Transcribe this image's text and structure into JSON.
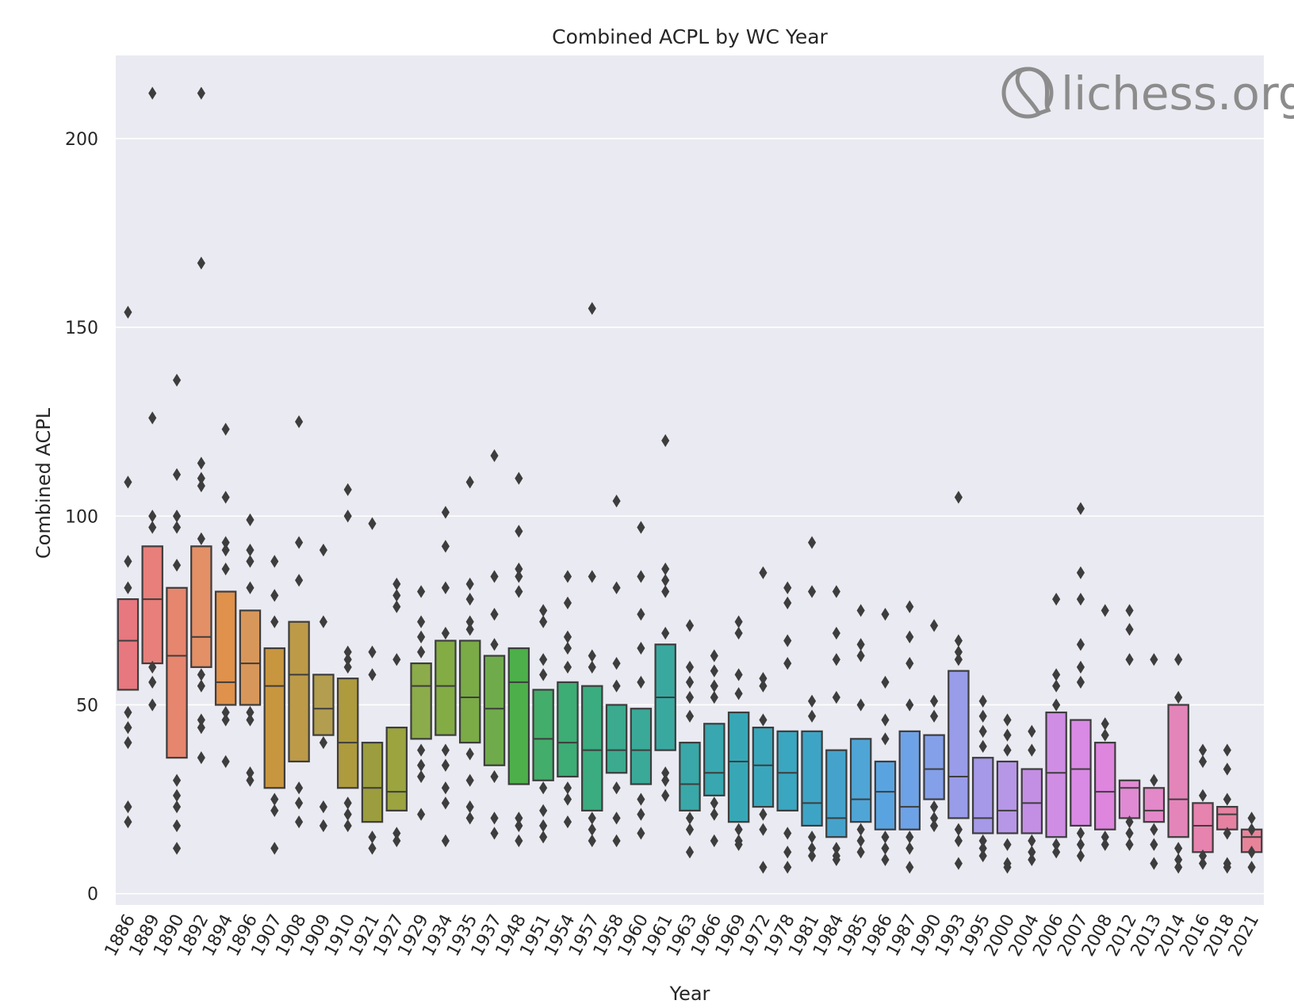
{
  "chart_data": {
    "type": "boxen",
    "title": "Combined ACPL by WC Year",
    "xlabel": "Year",
    "ylabel": "Combined ACPL",
    "ylim": [
      -3,
      222
    ],
    "yticks": [
      0,
      50,
      100,
      150,
      200
    ],
    "grid": true,
    "watermark": "lichess.org",
    "categories": [
      "1886",
      "1889",
      "1890",
      "1892",
      "1894",
      "1896",
      "1907",
      "1908",
      "1909",
      "1910",
      "1921",
      "1927",
      "1929",
      "1934",
      "1935",
      "1937",
      "1948",
      "1951",
      "1954",
      "1957",
      "1958",
      "1960",
      "1961",
      "1963",
      "1966",
      "1969",
      "1972",
      "1978",
      "1981",
      "1984",
      "1985",
      "1986",
      "1987",
      "1990",
      "1993",
      "1995",
      "2000",
      "2004",
      "2006",
      "2007",
      "2008",
      "2012",
      "2013",
      "2014",
      "2016",
      "2018",
      "2021"
    ],
    "colors": [
      "#e8787f",
      "#e87f7a",
      "#e6866e",
      "#e49066",
      "#e0914b",
      "#d8975a",
      "#c8963f",
      "#bc9a48",
      "#b39e4f",
      "#ae9b3e",
      "#9b9d3e",
      "#9ba43f",
      "#8cab4a",
      "#83ac45",
      "#7aab47",
      "#6fab4b",
      "#4daf4a",
      "#43ad6b",
      "#3dac75",
      "#3aac80",
      "#3baa8e",
      "#3aa998",
      "#39a9a0",
      "#3aa8a8",
      "#38a7af",
      "#37a7b6",
      "#39a6bc",
      "#3aa6c0",
      "#3ea4c6",
      "#45a3cb",
      "#4fa5d6",
      "#59a4e0",
      "#6ea2e6",
      "#84a0e8",
      "#999ce8",
      "#a699e8",
      "#b697e7",
      "#c38fe4",
      "#cf8ee4",
      "#d98ae4",
      "#de85dd",
      "#e08ad4",
      "#e388c8",
      "#e485ba",
      "#e683ae",
      "#e681a2",
      "#e8849a"
    ],
    "boxes": [
      {
        "median": 67,
        "q1": 54,
        "q3": 78,
        "outliers": [
          154,
          109,
          88,
          81,
          48,
          44,
          40,
          23,
          19
        ]
      },
      {
        "median": 78,
        "q1": 61,
        "q3": 92,
        "outliers": [
          212,
          126,
          100,
          97,
          60,
          56,
          50
        ]
      },
      {
        "median": 63,
        "q1": 36,
        "q3": 81,
        "outliers": [
          136,
          111,
          100,
          97,
          87,
          30,
          26,
          23,
          18,
          12
        ]
      },
      {
        "median": 68,
        "q1": 60,
        "q3": 92,
        "outliers": [
          212,
          167,
          114,
          110,
          108,
          94,
          58,
          55,
          46,
          44,
          36
        ]
      },
      {
        "median": 56,
        "q1": 50,
        "q3": 80,
        "outliers": [
          123,
          105,
          93,
          91,
          86,
          48,
          46,
          35
        ]
      },
      {
        "median": 61,
        "q1": 50,
        "q3": 75,
        "outliers": [
          99,
          91,
          88,
          81,
          48,
          46,
          32,
          30
        ]
      },
      {
        "median": 55,
        "q1": 28,
        "q3": 65,
        "outliers": [
          88,
          79,
          72,
          25,
          22,
          12
        ]
      },
      {
        "median": 58,
        "q1": 35,
        "q3": 72,
        "outliers": [
          125,
          93,
          83,
          28,
          24,
          19
        ]
      },
      {
        "median": 49,
        "q1": 42,
        "q3": 58,
        "outliers": [
          91,
          72,
          40,
          23,
          18
        ]
      },
      {
        "median": 40,
        "q1": 28,
        "q3": 57,
        "outliers": [
          107,
          100,
          64,
          62,
          60,
          24,
          21,
          18
        ]
      },
      {
        "median": 28,
        "q1": 19,
        "q3": 40,
        "outliers": [
          98,
          64,
          58,
          15,
          12
        ]
      },
      {
        "median": 27,
        "q1": 22,
        "q3": 44,
        "outliers": [
          82,
          79,
          76,
          62,
          16,
          14
        ]
      },
      {
        "median": 55,
        "q1": 41,
        "q3": 61,
        "outliers": [
          80,
          72,
          68,
          64,
          38,
          34,
          31,
          21
        ]
      },
      {
        "median": 55,
        "q1": 42,
        "q3": 67,
        "outliers": [
          101,
          92,
          81,
          69,
          38,
          34,
          28,
          24,
          14
        ]
      },
      {
        "median": 52,
        "q1": 40,
        "q3": 67,
        "outliers": [
          109,
          82,
          78,
          72,
          70,
          37,
          30,
          23,
          20
        ]
      },
      {
        "median": 49,
        "q1": 34,
        "q3": 63,
        "outliers": [
          116,
          84,
          74,
          66,
          31,
          20,
          16
        ]
      },
      {
        "median": 56,
        "q1": 29,
        "q3": 65,
        "outliers": [
          110,
          96,
          86,
          84,
          80,
          20,
          18,
          14
        ]
      },
      {
        "median": 41,
        "q1": 30,
        "q3": 54,
        "outliers": [
          75,
          72,
          62,
          58,
          28,
          22,
          18,
          15
        ]
      },
      {
        "median": 40,
        "q1": 31,
        "q3": 56,
        "outliers": [
          84,
          77,
          68,
          65,
          60,
          28,
          25,
          19
        ]
      },
      {
        "median": 38,
        "q1": 22,
        "q3": 55,
        "outliers": [
          155,
          84,
          63,
          60,
          20,
          17,
          14
        ]
      },
      {
        "median": 38,
        "q1": 32,
        "q3": 50,
        "outliers": [
          104,
          81,
          61,
          55,
          28,
          20,
          14
        ]
      },
      {
        "median": 38,
        "q1": 29,
        "q3": 49,
        "outliers": [
          97,
          84,
          74,
          65,
          56,
          25,
          21,
          16
        ]
      },
      {
        "median": 52,
        "q1": 38,
        "q3": 66,
        "outliers": [
          120,
          86,
          83,
          80,
          69,
          32,
          30,
          26
        ]
      },
      {
        "median": 29,
        "q1": 22,
        "q3": 40,
        "outliers": [
          71,
          60,
          56,
          52,
          47,
          20,
          17,
          11
        ]
      },
      {
        "median": 32,
        "q1": 26,
        "q3": 45,
        "outliers": [
          63,
          59,
          55,
          52,
          24,
          21,
          14
        ]
      },
      {
        "median": 35,
        "q1": 19,
        "q3": 48,
        "outliers": [
          72,
          69,
          58,
          53,
          17,
          14,
          13
        ]
      },
      {
        "median": 34,
        "q1": 23,
        "q3": 44,
        "outliers": [
          85,
          57,
          55,
          46,
          21,
          17,
          7
        ]
      },
      {
        "median": 32,
        "q1": 22,
        "q3": 43,
        "outliers": [
          81,
          77,
          67,
          61,
          16,
          11,
          7
        ]
      },
      {
        "median": 24,
        "q1": 18,
        "q3": 43,
        "outliers": [
          93,
          80,
          51,
          47,
          15,
          12,
          10
        ]
      },
      {
        "median": 20,
        "q1": 15,
        "q3": 38,
        "outliers": [
          80,
          69,
          62,
          52,
          12,
          10,
          9
        ]
      },
      {
        "median": 25,
        "q1": 19,
        "q3": 41,
        "outliers": [
          75,
          66,
          63,
          50,
          17,
          14,
          11
        ]
      },
      {
        "median": 27,
        "q1": 17,
        "q3": 35,
        "outliers": [
          74,
          56,
          46,
          41,
          15,
          12,
          9
        ]
      },
      {
        "median": 23,
        "q1": 17,
        "q3": 43,
        "outliers": [
          76,
          68,
          61,
          50,
          15,
          12,
          7
        ]
      },
      {
        "median": 33,
        "q1": 25,
        "q3": 42,
        "outliers": [
          71,
          51,
          47,
          23,
          20,
          18
        ]
      },
      {
        "median": 31,
        "q1": 20,
        "q3": 59,
        "outliers": [
          105,
          67,
          64,
          62,
          17,
          14,
          8
        ]
      },
      {
        "median": 20,
        "q1": 16,
        "q3": 36,
        "outliers": [
          51,
          47,
          43,
          39,
          14,
          12,
          10
        ]
      },
      {
        "median": 22,
        "q1": 16,
        "q3": 35,
        "outliers": [
          46,
          42,
          38,
          13,
          8,
          7
        ]
      },
      {
        "median": 24,
        "q1": 16,
        "q3": 33,
        "outliers": [
          43,
          38,
          14,
          11,
          9
        ]
      },
      {
        "median": 32,
        "q1": 15,
        "q3": 48,
        "outliers": [
          78,
          58,
          55,
          50,
          13,
          11
        ]
      },
      {
        "median": 33,
        "q1": 18,
        "q3": 46,
        "outliers": [
          102,
          85,
          78,
          66,
          60,
          56,
          16,
          13,
          10
        ]
      },
      {
        "median": 27,
        "q1": 17,
        "q3": 40,
        "outliers": [
          75,
          45,
          42,
          15,
          13
        ]
      },
      {
        "median": 28,
        "q1": 20,
        "q3": 30,
        "outliers": [
          75,
          70,
          62,
          19,
          16,
          13
        ]
      },
      {
        "median": 22,
        "q1": 19,
        "q3": 28,
        "outliers": [
          62,
          30,
          17,
          13,
          8
        ]
      },
      {
        "median": 25,
        "q1": 15,
        "q3": 50,
        "outliers": [
          62,
          52,
          12,
          9,
          7
        ]
      },
      {
        "median": 18,
        "q1": 11,
        "q3": 24,
        "outliers": [
          38,
          35,
          26,
          10,
          8
        ]
      },
      {
        "median": 21,
        "q1": 17,
        "q3": 23,
        "outliers": [
          38,
          33,
          25,
          16,
          8,
          7
        ]
      },
      {
        "median": 15,
        "q1": 11,
        "q3": 17,
        "outliers": [
          20,
          17,
          11,
          7
        ]
      }
    ]
  }
}
